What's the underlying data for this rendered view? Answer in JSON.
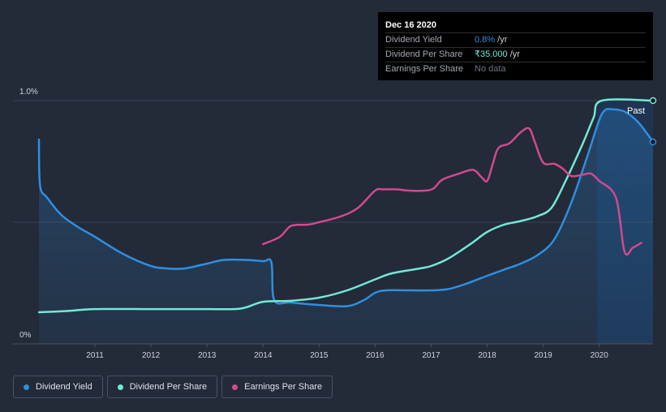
{
  "tooltip": {
    "date": "Dec 16 2020",
    "rows": [
      {
        "label": "Dividend Yield",
        "value": "0.8%",
        "unit": " /yr",
        "color": "#2e8fe0"
      },
      {
        "label": "Dividend Per Share",
        "value": "₹35.000",
        "unit": " /yr",
        "color": "#73e8d5"
      },
      {
        "label": "Earnings Per Share",
        "value": "No data",
        "unit": "",
        "color": "#6c7280"
      }
    ]
  },
  "past_label": "Past",
  "legend": [
    {
      "label": "Dividend Yield",
      "color": "#2e8fe0"
    },
    {
      "label": "Dividend Per Share",
      "color": "#73e8d5"
    },
    {
      "label": "Earnings Per Share",
      "color": "#d04a8e"
    }
  ],
  "chart_data": {
    "type": "line",
    "y_tick_labels": [
      "1.0%",
      "0%"
    ],
    "x_tick_labels": [
      "2011",
      "2012",
      "2013",
      "2014",
      "2015",
      "2016",
      "2017",
      "2018",
      "2019",
      "2020"
    ],
    "ylim": [
      0,
      1.0
    ],
    "xlim": [
      2010.0,
      2020.96
    ],
    "grid": true,
    "series": [
      {
        "name": "Dividend Yield",
        "unit": "%",
        "color": "#2e8fe0",
        "area": true,
        "points": [
          [
            2010.0,
            0.84
          ],
          [
            2010.02,
            0.65
          ],
          [
            2010.15,
            0.6
          ],
          [
            2010.4,
            0.53
          ],
          [
            2010.7,
            0.48
          ],
          [
            2011.0,
            0.44
          ],
          [
            2011.5,
            0.37
          ],
          [
            2012.0,
            0.32
          ],
          [
            2012.3,
            0.31
          ],
          [
            2012.6,
            0.31
          ],
          [
            2013.0,
            0.33
          ],
          [
            2013.3,
            0.345
          ],
          [
            2013.7,
            0.345
          ],
          [
            2014.0,
            0.34
          ],
          [
            2014.15,
            0.335
          ],
          [
            2014.2,
            0.18
          ],
          [
            2014.5,
            0.17
          ],
          [
            2015.0,
            0.16
          ],
          [
            2015.5,
            0.155
          ],
          [
            2015.8,
            0.18
          ],
          [
            2016.0,
            0.21
          ],
          [
            2016.2,
            0.22
          ],
          [
            2016.6,
            0.22
          ],
          [
            2017.0,
            0.22
          ],
          [
            2017.3,
            0.225
          ],
          [
            2017.6,
            0.245
          ],
          [
            2018.0,
            0.28
          ],
          [
            2018.3,
            0.305
          ],
          [
            2018.6,
            0.33
          ],
          [
            2018.9,
            0.365
          ],
          [
            2019.2,
            0.43
          ],
          [
            2019.5,
            0.58
          ],
          [
            2019.8,
            0.78
          ],
          [
            2020.0,
            0.92
          ],
          [
            2020.1,
            0.96
          ],
          [
            2020.2,
            0.965
          ],
          [
            2020.45,
            0.955
          ],
          [
            2020.7,
            0.91
          ],
          [
            2020.96,
            0.83
          ]
        ]
      },
      {
        "name": "Dividend Per Share",
        "unit": "relative",
        "color": "#73e8d5",
        "area": false,
        "points": [
          [
            2010.0,
            0.13
          ],
          [
            2010.5,
            0.135
          ],
          [
            2011.0,
            0.143
          ],
          [
            2012.0,
            0.143
          ],
          [
            2013.0,
            0.143
          ],
          [
            2013.6,
            0.145
          ],
          [
            2014.0,
            0.173
          ],
          [
            2014.5,
            0.177
          ],
          [
            2015.0,
            0.19
          ],
          [
            2015.5,
            0.22
          ],
          [
            2016.0,
            0.265
          ],
          [
            2016.3,
            0.29
          ],
          [
            2016.8,
            0.31
          ],
          [
            2017.0,
            0.32
          ],
          [
            2017.3,
            0.35
          ],
          [
            2017.7,
            0.41
          ],
          [
            2018.0,
            0.46
          ],
          [
            2018.3,
            0.49
          ],
          [
            2018.6,
            0.505
          ],
          [
            2018.9,
            0.525
          ],
          [
            2019.15,
            0.56
          ],
          [
            2019.4,
            0.67
          ],
          [
            2019.7,
            0.82
          ],
          [
            2019.9,
            0.93
          ],
          [
            2020.05,
            1.0
          ],
          [
            2020.96,
            1.0
          ]
        ]
      },
      {
        "name": "Earnings Per Share",
        "unit": "relative",
        "color": "#d04a8e",
        "area": false,
        "points": [
          [
            2014.0,
            0.41
          ],
          [
            2014.3,
            0.44
          ],
          [
            2014.5,
            0.485
          ],
          [
            2014.8,
            0.49
          ],
          [
            2015.0,
            0.5
          ],
          [
            2015.4,
            0.525
          ],
          [
            2015.7,
            0.56
          ],
          [
            2016.0,
            0.63
          ],
          [
            2016.15,
            0.635
          ],
          [
            2016.4,
            0.635
          ],
          [
            2016.6,
            0.63
          ],
          [
            2016.9,
            0.63
          ],
          [
            2017.05,
            0.64
          ],
          [
            2017.2,
            0.675
          ],
          [
            2017.5,
            0.7
          ],
          [
            2017.75,
            0.715
          ],
          [
            2017.9,
            0.685
          ],
          [
            2018.0,
            0.67
          ],
          [
            2018.1,
            0.74
          ],
          [
            2018.2,
            0.805
          ],
          [
            2018.4,
            0.825
          ],
          [
            2018.6,
            0.87
          ],
          [
            2018.75,
            0.885
          ],
          [
            2018.85,
            0.83
          ],
          [
            2019.0,
            0.745
          ],
          [
            2019.2,
            0.74
          ],
          [
            2019.35,
            0.72
          ],
          [
            2019.5,
            0.69
          ],
          [
            2019.7,
            0.695
          ],
          [
            2019.85,
            0.7
          ],
          [
            2020.0,
            0.67
          ],
          [
            2020.3,
            0.6
          ],
          [
            2020.45,
            0.38
          ],
          [
            2020.6,
            0.395
          ],
          [
            2020.75,
            0.415
          ]
        ]
      }
    ]
  }
}
